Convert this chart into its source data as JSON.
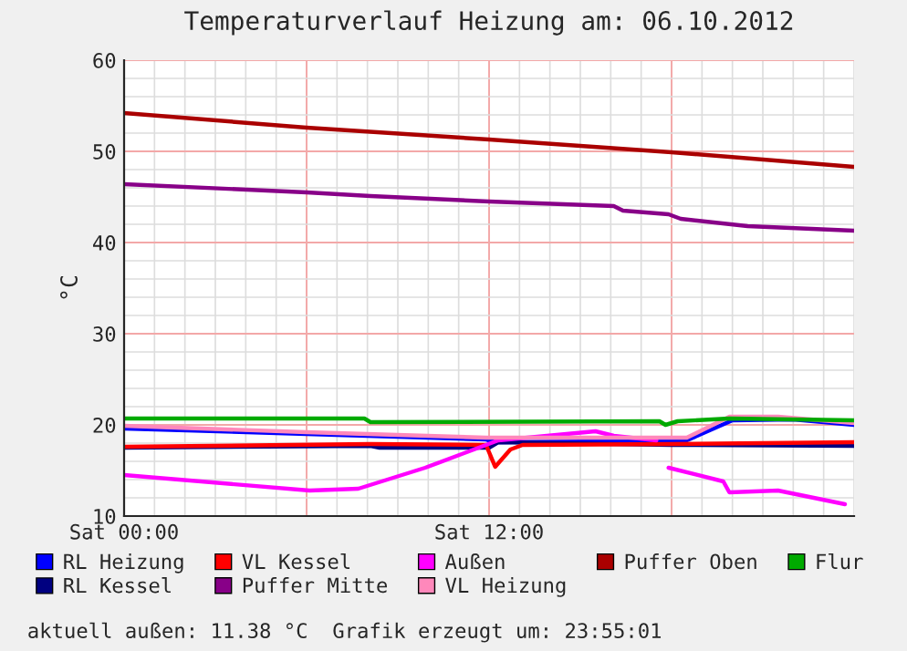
{
  "chart_data": {
    "type": "line",
    "title": "Temperaturverlauf Heizung am: 06.10.2012",
    "ylabel": "°C",
    "annotations": [
      "aktuell außen: 11.38 °C  Grafik erzeugt um: 23:55:01"
    ],
    "xlim": [
      "2012-10-06T00:00",
      "2012-10-07T00:00"
    ],
    "xticks": [
      {
        "value": "2012-10-06T00:00",
        "label": "Sat 00:00"
      },
      {
        "value": "2012-10-06T06:00",
        "label": null
      },
      {
        "value": "2012-10-06T12:00",
        "label": "Sat 12:00"
      },
      {
        "value": "2012-10-06T18:00",
        "label": null
      }
    ],
    "ylim": [
      10,
      60
    ],
    "yticks": [
      10,
      20,
      30,
      40,
      50,
      60
    ],
    "grid": true,
    "legend": "bottom",
    "line_style": "solid",
    "series": [
      {
        "name": "RL Heizung",
        "color": "#0000ff",
        "x": [
          "2012-10-06T00:00",
          "2012-10-06T06:00",
          "2012-10-06T11:54",
          "2012-10-06T12:12",
          "2012-10-06T16:00",
          "2012-10-06T18:30",
          "2012-10-06T20:00",
          "2012-10-06T22:00",
          "2012-10-07T00:00"
        ],
        "values": [
          19.6,
          19.0,
          18.4,
          18.1,
          18.2,
          18.3,
          20.5,
          20.6,
          20.0
        ]
      },
      {
        "name": "RL Kessel",
        "color": "#000080",
        "x": [
          "2012-10-06T00:00",
          "2012-10-06T08:06",
          "2012-10-06T08:24",
          "2012-10-06T12:00",
          "2012-10-06T12:18",
          "2012-10-06T18:00",
          "2012-10-07T00:00"
        ],
        "values": [
          17.5,
          17.7,
          17.5,
          17.5,
          18.1,
          17.8,
          17.7
        ]
      },
      {
        "name": "VL Kessel",
        "color": "#ff0000",
        "x": [
          "2012-10-06T00:00",
          "2012-10-06T08:06",
          "2012-10-06T11:54",
          "2012-10-06T12:12",
          "2012-10-06T12:42",
          "2012-10-06T13:06",
          "2012-10-06T18:00",
          "2012-10-07T00:00"
        ],
        "values": [
          17.6,
          17.9,
          17.8,
          15.4,
          17.3,
          17.8,
          17.9,
          18.1
        ]
      },
      {
        "name": "Puffer Mitte",
        "color": "#880088",
        "x": [
          "2012-10-06T00:00",
          "2012-10-06T06:00",
          "2012-10-06T08:06",
          "2012-10-06T12:00",
          "2012-10-06T16:06",
          "2012-10-06T16:24",
          "2012-10-06T17:54",
          "2012-10-06T18:18",
          "2012-10-06T20:30",
          "2012-10-07T00:00"
        ],
        "values": [
          46.4,
          45.5,
          45.1,
          44.5,
          44.0,
          43.5,
          43.1,
          42.6,
          41.8,
          41.3
        ]
      },
      {
        "name": "Außen",
        "color": "#ff00ff",
        "x": [
          "2012-10-06T00:00",
          "2012-10-06T06:06",
          "2012-10-06T07:42",
          "2012-10-06T09:54",
          "2012-10-06T11:30",
          "2012-10-06T12:18",
          "2012-10-06T15:30",
          "2012-10-06T16:06",
          "2012-10-06T17:30",
          "2012-10-06T17:48",
          "2012-10-06T17:54",
          "2012-10-06T19:42",
          "2012-10-06T19:54",
          "2012-10-06T21:30",
          "2012-10-06T23:42"
        ],
        "values": [
          14.5,
          12.8,
          13.0,
          15.3,
          17.3,
          18.3,
          19.3,
          18.8,
          18.3,
          null,
          15.3,
          13.8,
          12.6,
          12.8,
          11.3
        ]
      },
      {
        "name": "VL Heizung",
        "color": "#ff88bb",
        "x": [
          "2012-10-06T00:00",
          "2012-10-06T06:00",
          "2012-10-06T11:54",
          "2012-10-06T18:30",
          "2012-10-06T19:54",
          "2012-10-06T21:30",
          "2012-10-07T00:00"
        ],
        "values": [
          19.9,
          19.2,
          18.6,
          18.6,
          20.9,
          20.9,
          20.2
        ]
      },
      {
        "name": "Puffer Oben",
        "color": "#aa0000",
        "x": [
          "2012-10-06T00:00",
          "2012-10-06T06:00",
          "2012-10-06T12:00",
          "2012-10-06T18:00",
          "2012-10-07T00:00"
        ],
        "values": [
          54.2,
          52.6,
          51.3,
          49.9,
          48.3
        ]
      },
      {
        "name": "Flur",
        "color": "#00aa00",
        "x": [
          "2012-10-06T00:00",
          "2012-10-06T07:54",
          "2012-10-06T08:06",
          "2012-10-06T17:36",
          "2012-10-06T17:48",
          "2012-10-06T18:12",
          "2012-10-06T19:54",
          "2012-10-07T00:00"
        ],
        "values": [
          20.7,
          20.7,
          20.3,
          20.4,
          20.0,
          20.4,
          20.7,
          20.5
        ]
      }
    ]
  }
}
